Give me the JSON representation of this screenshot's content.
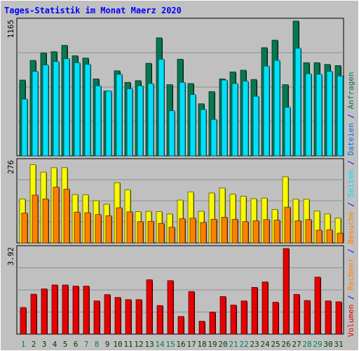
{
  "title": "Tages-Statistik im Monat Maerz 2020",
  "colors": {
    "background": "#c0c0c0",
    "panel": "#c0c0c0",
    "title": "#0000ff",
    "anfragen": "#087850",
    "dateien": "#0070e8",
    "seiten": "#00e0f8",
    "besuche": "#f8f800",
    "rechner": "#ff8000",
    "volumen": "#e80000",
    "weekday": "#004000",
    "weekend": "#008060"
  },
  "chart_data": [
    {
      "type": "bar",
      "panel": "top",
      "ymax_label": "1165",
      "ymax": 1165,
      "categories": [
        "1",
        "2",
        "3",
        "4",
        "5",
        "6",
        "7",
        "8",
        "9",
        "10",
        "11",
        "12",
        "13",
        "14",
        "15",
        "16",
        "17",
        "18",
        "19",
        "20",
        "21",
        "22",
        "23",
        "24",
        "25",
        "26",
        "27",
        "28",
        "29",
        "30",
        "31"
      ],
      "series": [
        {
          "name": "Anfragen",
          "values": [
            655,
            825,
            890,
            900,
            955,
            865,
            845,
            665,
            560,
            735,
            635,
            650,
            800,
            1020,
            615,
            835,
            625,
            450,
            555,
            665,
            725,
            740,
            660,
            935,
            1000,
            615,
            1165,
            805,
            805,
            790,
            780
          ]
        },
        {
          "name": "Dateien",
          "values": [
            330,
            425,
            480,
            490,
            505,
            495,
            460,
            385,
            305,
            405,
            330,
            350,
            470,
            630,
            325,
            460,
            340,
            235,
            305,
            375,
            430,
            435,
            370,
            550,
            590,
            355,
            680,
            470,
            465,
            460,
            450
          ]
        },
        {
          "name": "Seiten",
          "values": [
            490,
            730,
            785,
            815,
            840,
            805,
            790,
            605,
            560,
            705,
            580,
            605,
            625,
            835,
            390,
            635,
            530,
            400,
            315,
            655,
            625,
            645,
            515,
            775,
            825,
            420,
            930,
            710,
            705,
            730,
            690
          ]
        }
      ]
    },
    {
      "type": "bar",
      "panel": "middle",
      "ymax_label": "276",
      "ymax": 276,
      "categories": [
        "1",
        "2",
        "3",
        "4",
        "5",
        "6",
        "7",
        "8",
        "9",
        "10",
        "11",
        "12",
        "13",
        "14",
        "15",
        "16",
        "17",
        "18",
        "19",
        "20",
        "21",
        "22",
        "23",
        "24",
        "25",
        "26",
        "27",
        "28",
        "29",
        "30",
        "31"
      ],
      "series": [
        {
          "name": "Besuche",
          "values": [
            149,
            265,
            240,
            255,
            255,
            164,
            163,
            143,
            131,
            204,
            180,
            106,
            107,
            106,
            98,
            145,
            173,
            107,
            169,
            186,
            165,
            158,
            150,
            152,
            113,
            224,
            148,
            148,
            108,
            98,
            84
          ]
        },
        {
          "name": "Rechner",
          "values": [
            101,
            162,
            149,
            189,
            182,
            104,
            102,
            96,
            92,
            119,
            105,
            72,
            73,
            66,
            53,
            82,
            84,
            69,
            80,
            87,
            80,
            72,
            75,
            79,
            77,
            121,
            75,
            79,
            43,
            44,
            33
          ]
        }
      ]
    },
    {
      "type": "bar",
      "panel": "bottom",
      "ymax_label": "3.92",
      "ymax": 3.92,
      "categories": [
        "1",
        "2",
        "3",
        "4",
        "5",
        "6",
        "7",
        "8",
        "9",
        "10",
        "11",
        "12",
        "13",
        "14",
        "15",
        "16",
        "17",
        "18",
        "19",
        "20",
        "21",
        "22",
        "23",
        "24",
        "25",
        "26",
        "27",
        "28",
        "29",
        "30",
        "31"
      ],
      "series": [
        {
          "name": "Volumen",
          "values": [
            1.22,
            1.83,
            2.07,
            2.25,
            2.25,
            2.2,
            2.2,
            1.52,
            1.81,
            1.68,
            1.58,
            1.58,
            2.49,
            1.31,
            2.45,
            0.81,
            1.95,
            0.59,
            1.01,
            1.72,
            1.33,
            1.52,
            2.14,
            2.39,
            1.46,
            3.92,
            1.82,
            1.54,
            2.61,
            1.52,
            1.48
          ]
        }
      ]
    }
  ],
  "right_legend": [
    {
      "text": "Volumen",
      "color_key": "volumen"
    },
    {
      "text": " / ",
      "color_key": "title"
    },
    {
      "text": "Rechner",
      "color_key": "rechner"
    },
    {
      "text": " / ",
      "color_key": "title"
    },
    {
      "text": "Besuche",
      "color_key": "rechner"
    },
    {
      "text": " / ",
      "color_key": "title"
    },
    {
      "text": "Seiten",
      "color_key": "seiten"
    },
    {
      "text": " / ",
      "color_key": "title"
    },
    {
      "text": "Dateien",
      "color_key": "dateien"
    },
    {
      "text": " / ",
      "color_key": "title"
    },
    {
      "text": "Anfragen",
      "color_key": "anfragen"
    }
  ],
  "weekend_days": [
    "1",
    "7",
    "8",
    "14",
    "15",
    "21",
    "22",
    "28",
    "29"
  ]
}
